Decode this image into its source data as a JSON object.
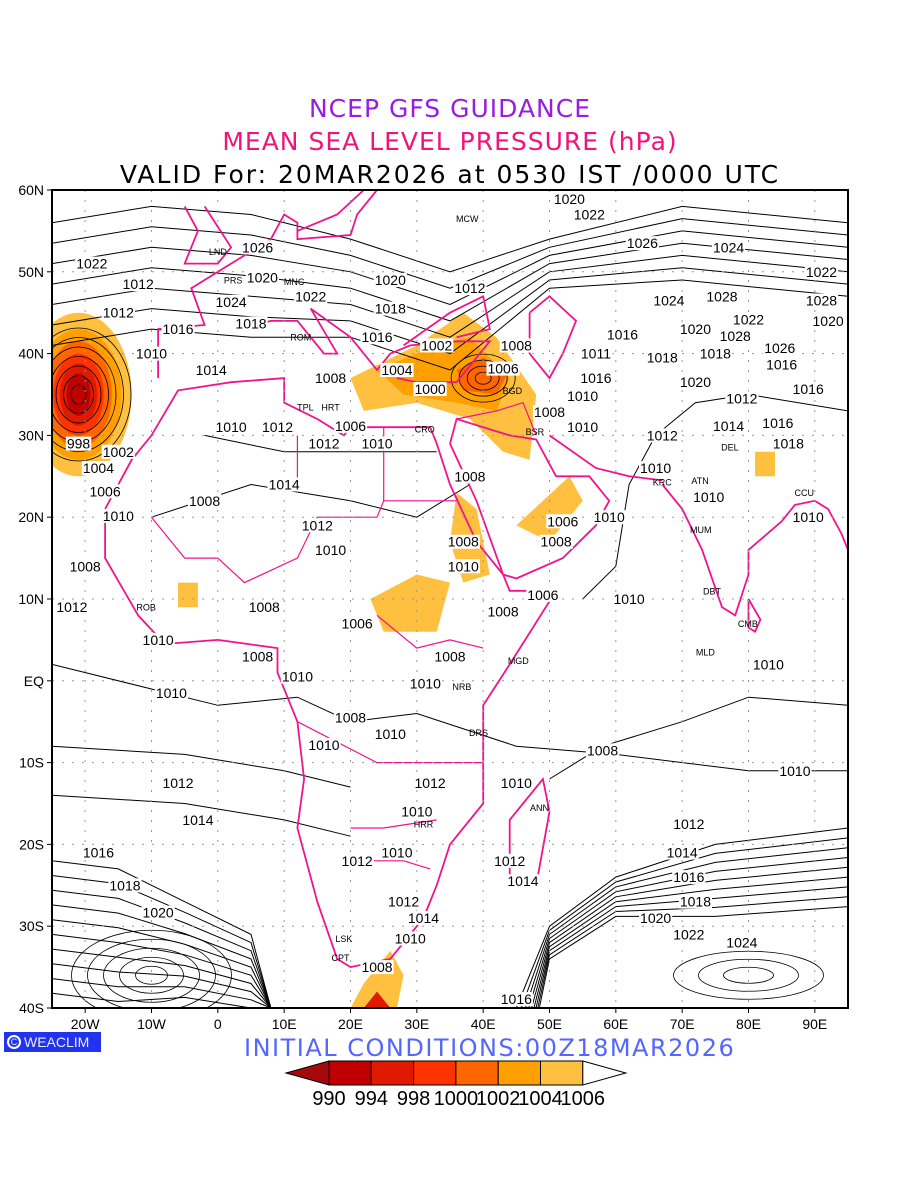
{
  "titles": {
    "line1": "NCEP GFS GUIDANCE",
    "line2": "MEAN SEA LEVEL PRESSURE (hPa)",
    "line3": "VALID For: 20MAR2026 at 0530 IST /0000 UTC"
  },
  "logo": {
    "text": "WEACLIM",
    "icon": "copyright-circle-icon"
  },
  "initial_conditions": "INITIAL  CONDITIONS:00Z18MAR2026",
  "axes": {
    "lon_range": [
      -25,
      95
    ],
    "lat_range": [
      -40,
      60
    ],
    "lon_ticks": [
      {
        "v": -20,
        "l": "20W"
      },
      {
        "v": -10,
        "l": "10W"
      },
      {
        "v": 0,
        "l": "0"
      },
      {
        "v": 10,
        "l": "10E"
      },
      {
        "v": 20,
        "l": "20E"
      },
      {
        "v": 30,
        "l": "30E"
      },
      {
        "v": 40,
        "l": "40E"
      },
      {
        "v": 50,
        "l": "50E"
      },
      {
        "v": 60,
        "l": "60E"
      },
      {
        "v": 70,
        "l": "70E"
      },
      {
        "v": 80,
        "l": "80E"
      },
      {
        "v": 90,
        "l": "90E"
      }
    ],
    "lat_ticks": [
      {
        "v": 60,
        "l": "60N"
      },
      {
        "v": 50,
        "l": "50N"
      },
      {
        "v": 40,
        "l": "40N"
      },
      {
        "v": 30,
        "l": "30N"
      },
      {
        "v": 20,
        "l": "20N"
      },
      {
        "v": 10,
        "l": "10N"
      },
      {
        "v": 0,
        "l": "EQ"
      },
      {
        "v": -10,
        "l": "10S"
      },
      {
        "v": -20,
        "l": "20S"
      },
      {
        "v": -30,
        "l": "30S"
      },
      {
        "v": -40,
        "l": "40S"
      }
    ]
  },
  "colorbar": {
    "labels": [
      "990",
      "994",
      "998",
      "1000",
      "1002",
      "1004",
      "1006"
    ],
    "colors": [
      "#a50a0a",
      "#c00000",
      "#e01a00",
      "#ff3300",
      "#ff6600",
      "#ffa000",
      "#ffc040",
      "#ffffff"
    ]
  },
  "contour_labels": [
    {
      "t": "1022",
      "lon": -19,
      "lat": 51
    },
    {
      "t": "1012",
      "lon": -15,
      "lat": 45
    },
    {
      "t": "1016",
      "lon": -6,
      "lat": 43
    },
    {
      "t": "1010",
      "lon": -10,
      "lat": 40
    },
    {
      "t": "1014",
      "lon": -1,
      "lat": 38
    },
    {
      "t": "1010",
      "lon": 2,
      "lat": 31
    },
    {
      "t": "1012",
      "lon": 9,
      "lat": 31
    },
    {
      "t": "1012",
      "lon": -12,
      "lat": 48.5
    },
    {
      "t": "1026",
      "lon": 6,
      "lat": 53
    },
    {
      "t": "1024",
      "lon": 2,
      "lat": 50
    },
    {
      "t": "1020",
      "lon": 4,
      "lat": 47.5
    },
    {
      "t": "1018",
      "lon": 5,
      "lat": 45.5
    },
    {
      "t": "1022",
      "lon": 14,
      "lat": 47
    },
    {
      "t": "1020",
      "lon": 26,
      "lat": 49
    },
    {
      "t": "1018",
      "lon": 26,
      "lat": 45.5
    },
    {
      "t": "1016",
      "lon": 24,
      "lat": 42
    },
    {
      "t": "1012",
      "lon": 38,
      "lat": 48
    },
    {
      "t": "1008",
      "lon": 45,
      "lat": 41
    },
    {
      "t": "1002",
      "lon": 33,
      "lat": 41
    },
    {
      "t": "1004",
      "lon": 27,
      "lat": 38
    },
    {
      "t": "1000",
      "lon": 32,
      "lat": 37.5
    },
    {
      "t": "1006",
      "lon": 43,
      "lat": 40
    },
    {
      "t": "1008",
      "lon": 17,
      "lat": 37
    },
    {
      "t": "1006",
      "lon": 20,
      "lat": 33
    },
    {
      "t": "1012",
      "lon": 16,
      "lat": 29
    },
    {
      "t": "1010",
      "lon": 24,
      "lat": 29
    },
    {
      "t": "998",
      "lon": -21,
      "lat": 29
    },
    {
      "t": "1002",
      "lon": -15,
      "lat": 28
    },
    {
      "t": "1004",
      "lon": -18,
      "lat": 26
    },
    {
      "t": "1006",
      "lon": -17,
      "lat": 25
    },
    {
      "t": "1010",
      "lon": -15,
      "lat": 22
    },
    {
      "t": "1008",
      "lon": -2,
      "lat": 22
    },
    {
      "t": "1014",
      "lon": 10,
      "lat": 24
    },
    {
      "t": "1012",
      "lon": 15,
      "lat": 19
    },
    {
      "t": "1010",
      "lon": 17,
      "lat": 16
    },
    {
      "t": "1008",
      "lon": 38,
      "lat": 25
    },
    {
      "t": "1006",
      "lon": 52,
      "lat": 19.5
    },
    {
      "t": "1008",
      "lon": 51,
      "lat": 17
    },
    {
      "t": "1008",
      "lon": 37,
      "lat": 17
    },
    {
      "t": "1010",
      "lon": 37,
      "lat": 14
    },
    {
      "t": "1008",
      "lon": -20,
      "lat": 14
    },
    {
      "t": "1012",
      "lon": -22,
      "lat": 9
    },
    {
      "t": "1010",
      "lon": -9,
      "lat": 5
    },
    {
      "t": "1008",
      "lon": 7,
      "lat": 9
    },
    {
      "t": "1006",
      "lon": 21,
      "lat": 7
    },
    {
      "t": "1008",
      "lon": 43,
      "lat": 8.5
    },
    {
      "t": "1006",
      "lon": 49,
      "lat": 10.5
    },
    {
      "t": "1008",
      "lon": 35,
      "lat": 3
    },
    {
      "t": "1010",
      "lon": 34,
      "lat": 1.5
    },
    {
      "t": "1008",
      "lon": 6,
      "lat": 3
    },
    {
      "t": "1010",
      "lon": 12,
      "lat": 0.5
    },
    {
      "t": "1010",
      "lon": -7,
      "lat": -1.5
    },
    {
      "t": "1008",
      "lon": 20,
      "lat": -4.5
    },
    {
      "t": "1010",
      "lon": 16,
      "lat": -6
    },
    {
      "t": "1010",
      "lon": 26,
      "lat": -6.5
    },
    {
      "t": "1008",
      "lon": 58,
      "lat": -8.5
    },
    {
      "t": "1010",
      "lon": 87,
      "lat": -11
    },
    {
      "t": "1012",
      "lon": -6,
      "lat": -12.5
    },
    {
      "t": "1014",
      "lon": -3,
      "lat": -17
    },
    {
      "t": "1012",
      "lon": 32,
      "lat": -12.5
    },
    {
      "t": "1010",
      "lon": 45,
      "lat": -12.5
    },
    {
      "t": "1010",
      "lon": 30,
      "lat": -16
    },
    {
      "t": "1016",
      "lon": -18,
      "lat": -21
    },
    {
      "t": "1012",
      "lon": 71,
      "lat": -17.5
    },
    {
      "t": "1014",
      "lon": 70,
      "lat": -21
    },
    {
      "t": "1012",
      "lon": 44,
      "lat": -22
    },
    {
      "t": "1014",
      "lon": 46,
      "lat": -24.5
    },
    {
      "t": "1012",
      "lon": 21,
      "lat": -22
    },
    {
      "t": "1010",
      "lon": 27,
      "lat": -21
    },
    {
      "t": "1016",
      "lon": 71,
      "lat": -24
    },
    {
      "t": "1018",
      "lon": -14,
      "lat": -25
    },
    {
      "t": "1020",
      "lon": -9,
      "lat": -26.5
    },
    {
      "t": "1018",
      "lon": 72,
      "lat": -27
    },
    {
      "t": "1012",
      "lon": 28,
      "lat": -27
    },
    {
      "t": "1014",
      "lon": 31,
      "lat": -29
    },
    {
      "t": "1020",
      "lon": 66,
      "lat": -29
    },
    {
      "t": "1022",
      "lon": 71,
      "lat": -31
    },
    {
      "t": "1024",
      "lon": 79,
      "lat": -32
    },
    {
      "t": "1010",
      "lon": 29,
      "lat": -31.5
    },
    {
      "t": "1008",
      "lon": 24,
      "lat": -35
    },
    {
      "t": "1016",
      "lon": 45,
      "lat": -39.5
    },
    {
      "t": "1010",
      "lon": 59,
      "lat": 20
    },
    {
      "t": "1012",
      "lon": 67,
      "lat": 30
    },
    {
      "t": "1010",
      "lon": 66,
      "lat": 26
    },
    {
      "t": "1010",
      "lon": 74,
      "lat": 22.5
    },
    {
      "t": "1010",
      "lon": 89,
      "lat": 20
    },
    {
      "t": "1010",
      "lon": 62,
      "lat": 10
    },
    {
      "t": "1010",
      "lon": 83,
      "lat": 2
    },
    {
      "t": "1008",
      "lon": 50,
      "lat": 31
    },
    {
      "t": "1010",
      "lon": 55,
      "lat": 33
    },
    {
      "t": "1010",
      "lon": 55,
      "lat": 31
    },
    {
      "t": "1011",
      "lon": 57,
      "lat": 40
    },
    {
      "t": "1016",
      "lon": 61,
      "lat": 40.5
    },
    {
      "t": "1018",
      "lon": 67,
      "lat": 39.5
    },
    {
      "t": "1020",
      "lon": 72,
      "lat": 43
    },
    {
      "t": "1018",
      "lon": 75,
      "lat": 40
    },
    {
      "t": "1020",
      "lon": 72,
      "lat": 36.5
    },
    {
      "t": "1024",
      "lon": 68,
      "lat": 46.5
    },
    {
      "t": "1026",
      "lon": 64,
      "lat": 53.5
    },
    {
      "t": "1024",
      "lon": 77,
      "lat": 53
    },
    {
      "t": "1022",
      "lon": 56,
      "lat": 57
    },
    {
      "t": "1020",
      "lon": 53,
      "lat": 57.5
    },
    {
      "t": "1028",
      "lon": 76,
      "lat": 47
    },
    {
      "t": "1022",
      "lon": 80,
      "lat": 46
    },
    {
      "t": "1028",
      "lon": 78,
      "lat": 44
    },
    {
      "t": "1026",
      "lon": 82,
      "lat": 42.5
    },
    {
      "t": "1016",
      "lon": 85,
      "lat": 40.5
    },
    {
      "t": "1016",
      "lon": 89,
      "lat": 37.5
    },
    {
      "t": "1012",
      "lon": 79,
      "lat": 34.5
    },
    {
      "t": "1014",
      "lon": 77,
      "lat": 33
    },
    {
      "t": "1016",
      "lon": 79,
      "lat": 31.5
    },
    {
      "t": "1018",
      "lon": 86,
      "lat": 29
    },
    {
      "t": "1022",
      "lon": 91,
      "lat": 50
    },
    {
      "t": "1028",
      "lon": 91,
      "lat": 46.5
    },
    {
      "t": "1020",
      "lon": 92,
      "lat": 44
    },
    {
      "t": "1016",
      "lon": 57,
      "lat": 37
    }
  ],
  "station_labels": [
    "MCW",
    "LND",
    "PRS",
    "MNC",
    "ROM",
    "TPL",
    "HRT",
    "CRO",
    "BSR",
    "BGD",
    "KRC",
    "DEL",
    "ROB",
    "MGD",
    "NRB",
    "DRS",
    "ANN",
    "HRR",
    "LSK",
    "CPT",
    "MLD",
    "DBT",
    "MUM",
    "CCU",
    "ATN",
    "CMB"
  ]
}
